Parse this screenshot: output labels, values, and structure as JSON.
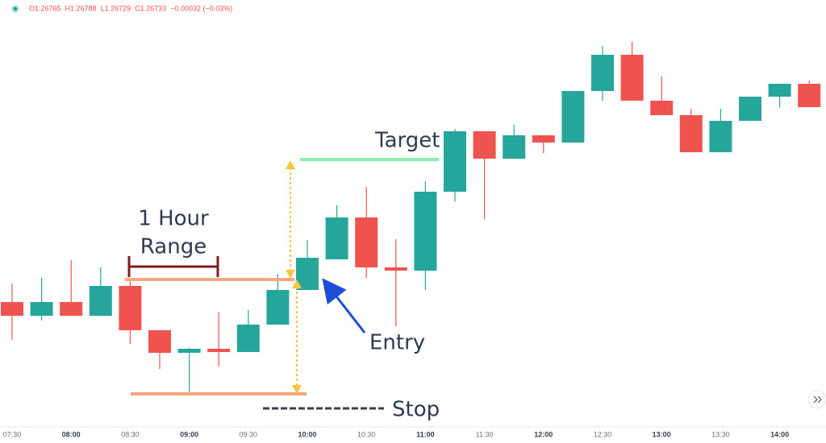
{
  "chart_data": {
    "type": "candlestick",
    "header": [
      "O1.26765",
      "H1.26788",
      "L1.26729",
      "C1.26733",
      "−0.00032 (−0.03%)"
    ],
    "annotations": {
      "range": [
        "1 Hour",
        "Range"
      ],
      "target": "Target",
      "entry": "Entry",
      "stop": "Stop"
    },
    "categories": [
      "07:30",
      null,
      "08:00",
      null,
      "08:30",
      null,
      "09:00",
      null,
      "09:30",
      null,
      "10:00",
      null,
      "10:30",
      null,
      "11:00",
      null,
      "11:30",
      null,
      "12:00",
      null,
      "12:30",
      null,
      "13:00",
      null,
      "13:30",
      null,
      "14:00",
      null
    ],
    "open": [
      1.26655,
      1.26638,
      1.26655,
      1.26638,
      1.26675,
      1.2662,
      1.26592,
      1.26597,
      1.26593,
      1.26627,
      1.2667,
      1.26708,
      1.2676,
      1.26698,
      1.26694,
      1.26792,
      1.26867,
      1.26833,
      1.26862,
      1.26853,
      1.26917,
      1.26962,
      1.26905,
      1.26887,
      1.26841,
      1.2688,
      1.2691,
      1.26926
    ],
    "high": [
      1.26678,
      1.26685,
      1.26707,
      1.26698,
      1.26685,
      1.2662,
      1.26598,
      1.26642,
      1.26645,
      1.2669,
      1.26732,
      1.26775,
      1.26798,
      1.26733,
      1.26805,
      1.2687,
      1.26867,
      1.26875,
      1.26862,
      1.26917,
      1.26973,
      1.26978,
      1.26935,
      1.26895,
      1.26895,
      1.2691,
      1.26926,
      1.2693
    ],
    "low": [
      1.26608,
      1.26632,
      1.26638,
      1.26638,
      1.26603,
      1.26572,
      1.26543,
      1.26575,
      1.26593,
      1.26627,
      1.2667,
      1.26708,
      1.26685,
      1.26625,
      1.2667,
      1.2678,
      1.26758,
      1.26833,
      1.2684,
      1.26853,
      1.26905,
      1.26905,
      1.26887,
      1.26841,
      1.26841,
      1.2688,
      1.26897,
      1.26897
    ],
    "close": [
      1.26638,
      1.26655,
      1.26638,
      1.26675,
      1.2662,
      1.26592,
      1.26597,
      1.26593,
      1.26627,
      1.2667,
      1.2671,
      1.2676,
      1.26698,
      1.26694,
      1.26792,
      1.26867,
      1.26833,
      1.26862,
      1.26853,
      1.26917,
      1.26962,
      1.26905,
      1.26887,
      1.26841,
      1.2688,
      1.2691,
      1.26926,
      1.26897
    ],
    "up_color": "#26a69a",
    "down_color": "#ef5350",
    "ylim": [
      1.265,
      1.2703
    ]
  }
}
